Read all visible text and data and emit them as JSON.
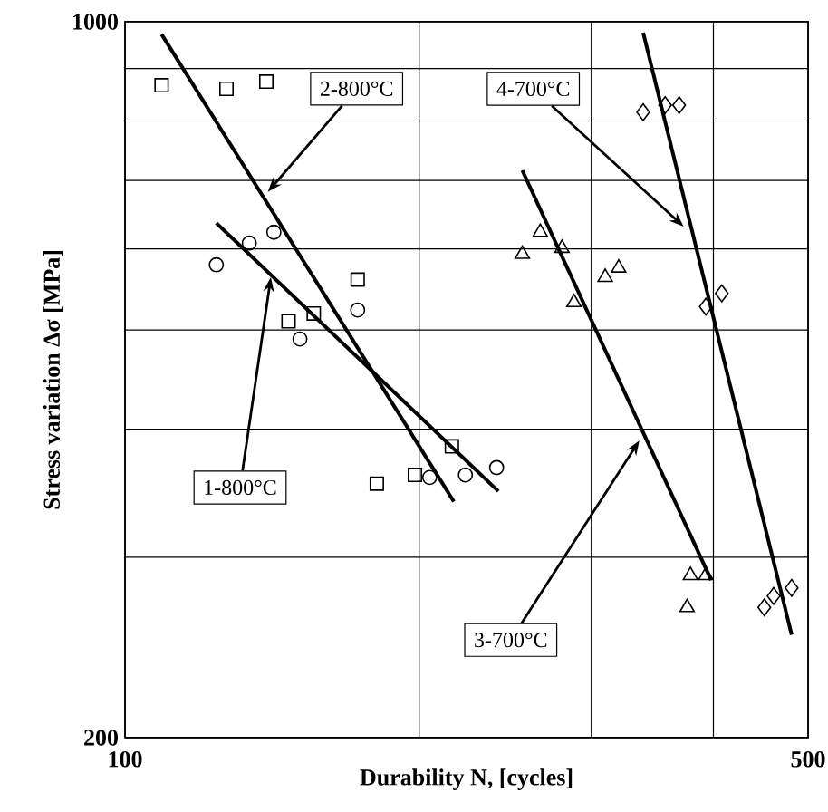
{
  "chart_data": {
    "type": "scatter",
    "xlabel": "Durability N, [cycles]",
    "ylabel": "Stress variation Δσ  [MPa]",
    "log": "xy",
    "grid": true,
    "xlim": [
      100,
      500
    ],
    "ylim": [
      200,
      1000
    ],
    "xticks": [
      100,
      {
        "value": 200,
        "label": null
      },
      {
        "value": 300,
        "label": null
      },
      {
        "value": 400,
        "label": null
      },
      500
    ],
    "yticks": [
      200,
      {
        "value": 300,
        "label": null
      },
      {
        "value": 400,
        "label": null
      },
      {
        "value": 500,
        "label": null
      },
      {
        "value": 600,
        "label": null
      },
      {
        "value": 700,
        "label": null
      },
      {
        "value": 800,
        "label": null
      },
      {
        "value": 900,
        "label": null
      },
      1000
    ],
    "series": [
      {
        "marker": "square",
        "color": "#000000",
        "x": [
          109,
          127,
          139.5,
          173,
          147,
          156,
          216,
          198,
          181
        ],
        "values": [
          867,
          860,
          874,
          560,
          510,
          519,
          385,
          361,
          354
        ]
      },
      {
        "marker": "circle",
        "color": "#000000",
        "x": [
          124,
          134,
          142,
          151,
          173,
          205,
          223,
          240
        ],
        "values": [
          579,
          608,
          623,
          490,
          523,
          359,
          361,
          367
        ]
      },
      {
        "marker": "triangle",
        "color": "#000000",
        "x": [
          255,
          266,
          280,
          310,
          320,
          288,
          379,
          393,
          376
        ],
        "values": [
          593,
          623,
          601,
          563,
          575,
          532,
          288,
          288,
          268
        ]
      },
      {
        "marker": "diamond",
        "color": "#000000",
        "x": [
          339,
          357,
          369,
          393,
          408,
          451,
          461,
          481
        ],
        "values": [
          816,
          829,
          829,
          527,
          543,
          268,
          275,
          280
        ]
      },
      {
        "type": "line",
        "marker": "none",
        "color": "#000000",
        "x": [
          109,
          217
        ],
        "values": [
          972,
          340
        ]
      },
      {
        "type": "line",
        "marker": "none",
        "color": "#000000",
        "x": [
          124,
          241
        ],
        "values": [
          636,
          348
        ]
      },
      {
        "type": "line",
        "marker": "none",
        "color": "#000000",
        "x": [
          255,
          398
        ],
        "values": [
          716,
          285
        ]
      },
      {
        "type": "line",
        "marker": "none",
        "color": "#000000",
        "x": [
          339,
          481
        ],
        "values": [
          976,
          252
        ]
      }
    ],
    "annotations": [
      {
        "text": "2-800°C",
        "x": 140,
        "y": 682
      },
      {
        "text": "4-700°C",
        "x": 373,
        "y": 631
      },
      {
        "text": "1-800°C",
        "x": 141,
        "y": 563
      },
      {
        "text": "3-700°C",
        "x": 336,
        "y": 390
      }
    ]
  }
}
